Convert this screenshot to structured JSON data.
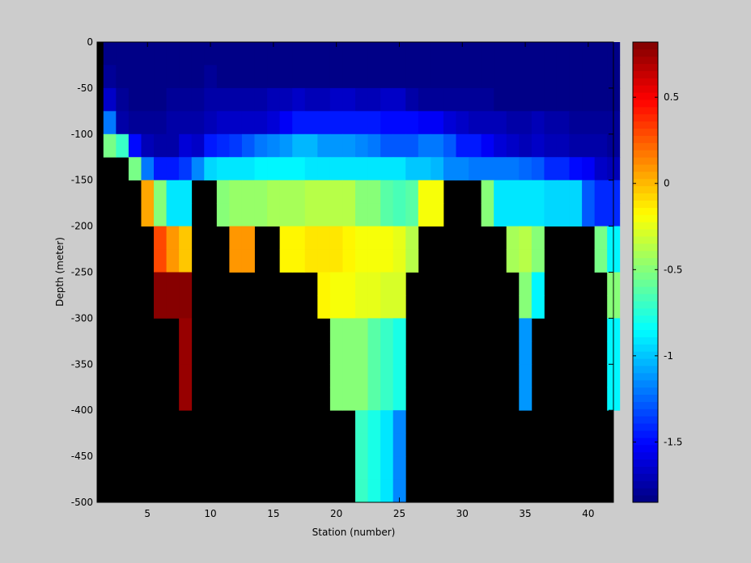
{
  "chart_data": {
    "type": "heatmap",
    "title": "",
    "xlabel": "Station (number)",
    "ylabel": "Depth (meter)",
    "xlim": [
      1,
      42
    ],
    "ylim": [
      -500,
      0
    ],
    "x_ticks": [
      5,
      10,
      15,
      20,
      25,
      30,
      35,
      40
    ],
    "y_ticks": [
      0,
      -50,
      -100,
      -150,
      -200,
      -250,
      -300,
      -350,
      -400,
      -450,
      -500
    ],
    "colorbar": {
      "colormap": "jet",
      "range": [
        -1.85,
        0.82
      ],
      "ticks": [
        0.5,
        0,
        -0.5,
        -1,
        -1.5
      ]
    },
    "missing_color": "#000000",
    "stations": [
      2,
      3,
      4,
      5,
      6,
      7,
      8,
      9,
      10,
      11,
      12,
      13,
      14,
      15,
      16,
      17,
      18,
      19,
      20,
      21,
      22,
      23,
      24,
      25,
      26,
      27,
      28,
      29,
      30,
      31,
      32,
      33,
      34,
      35,
      36,
      37,
      38,
      39,
      40,
      41,
      42
    ],
    "depth_levels": [
      0,
      -25,
      -50,
      -75,
      -100,
      -125,
      -150,
      -175,
      -200,
      -225,
      -250,
      -275,
      -300,
      -325,
      -350,
      -375,
      -400,
      -425,
      -450,
      -475,
      -500
    ],
    "values": [
      [
        -1.85,
        -1.85,
        -1.85,
        -1.85,
        -1.85,
        -1.85,
        -1.85,
        -1.85,
        -1.85,
        -1.85,
        -1.85,
        -1.85,
        -1.85,
        -1.85,
        -1.85,
        -1.85,
        -1.85,
        -1.85,
        -1.85,
        -1.85,
        -1.85,
        -1.85,
        -1.85,
        -1.85,
        -1.85,
        -1.85,
        -1.85,
        -1.85,
        -1.85,
        -1.85,
        -1.85,
        -1.85,
        -1.85,
        -1.85,
        -1.85,
        -1.85,
        -1.85,
        -1.85,
        -1.85,
        -1.85,
        -1.85
      ],
      [
        -1.8,
        -1.85,
        -1.85,
        -1.85,
        -1.85,
        -1.85,
        -1.85,
        -1.85,
        -1.8,
        -1.85,
        -1.85,
        -1.85,
        -1.85,
        -1.85,
        -1.85,
        -1.85,
        -1.85,
        -1.85,
        -1.85,
        -1.85,
        -1.85,
        -1.85,
        -1.85,
        -1.85,
        -1.85,
        -1.85,
        -1.85,
        -1.85,
        -1.85,
        -1.85,
        -1.85,
        -1.85,
        -1.85,
        -1.85,
        -1.85,
        -1.85,
        -1.85,
        -1.85,
        -1.85,
        -1.85,
        -1.85
      ],
      [
        -1.65,
        -1.8,
        -1.85,
        -1.85,
        -1.85,
        -1.8,
        -1.8,
        -1.8,
        -1.75,
        -1.75,
        -1.75,
        -1.75,
        -1.75,
        -1.7,
        -1.7,
        -1.65,
        -1.7,
        -1.7,
        -1.65,
        -1.65,
        -1.7,
        -1.7,
        -1.65,
        -1.65,
        -1.75,
        -1.8,
        -1.8,
        -1.8,
        -1.8,
        -1.8,
        -1.8,
        -1.85,
        -1.85,
        -1.85,
        -1.85,
        -1.85,
        -1.85,
        -1.85,
        -1.85,
        -1.85,
        -1.85
      ],
      [
        -1.2,
        -1.75,
        -1.8,
        -1.8,
        -1.8,
        -1.75,
        -1.75,
        -1.75,
        -1.7,
        -1.65,
        -1.65,
        -1.65,
        -1.65,
        -1.6,
        -1.55,
        -1.45,
        -1.45,
        -1.45,
        -1.45,
        -1.45,
        -1.45,
        -1.45,
        -1.5,
        -1.5,
        -1.5,
        -1.55,
        -1.55,
        -1.6,
        -1.65,
        -1.7,
        -1.7,
        -1.7,
        -1.75,
        -1.75,
        -1.7,
        -1.75,
        -1.75,
        -1.8,
        -1.8,
        -1.8,
        -1.8
      ],
      [
        -0.55,
        -0.7,
        -1.5,
        -1.7,
        -1.75,
        -1.75,
        -1.6,
        -1.65,
        -1.45,
        -1.4,
        -1.35,
        -1.3,
        -1.2,
        -1.15,
        -1.1,
        -1.05,
        -1.05,
        -1.1,
        -1.1,
        -1.1,
        -1.15,
        -1.2,
        -1.3,
        -1.3,
        -1.3,
        -1.2,
        -1.2,
        -1.3,
        -1.45,
        -1.45,
        -1.55,
        -1.6,
        -1.65,
        -1.7,
        -1.65,
        -1.7,
        -1.7,
        -1.75,
        -1.75,
        -1.75,
        -1.8
      ],
      [
        null,
        null,
        -0.55,
        -1.2,
        -1.45,
        -1.45,
        -1.35,
        -1.15,
        -0.95,
        -0.9,
        -0.9,
        -0.9,
        -0.85,
        -0.85,
        -0.85,
        -0.85,
        -0.9,
        -0.9,
        -0.9,
        -0.9,
        -0.9,
        -0.9,
        -0.9,
        -0.9,
        -1.0,
        -1.0,
        -1.05,
        -1.15,
        -1.15,
        -1.2,
        -1.2,
        -1.2,
        -1.2,
        -1.25,
        -1.3,
        -1.4,
        -1.4,
        -1.5,
        -1.55,
        -1.65,
        -1.7
      ],
      [
        null,
        null,
        null,
        0.05,
        -0.5,
        -0.9,
        -0.9,
        null,
        null,
        -0.5,
        -0.45,
        -0.45,
        -0.45,
        -0.4,
        -0.4,
        -0.4,
        -0.35,
        -0.35,
        -0.35,
        -0.35,
        -0.5,
        -0.5,
        -0.6,
        -0.65,
        -0.6,
        -0.2,
        -0.2,
        null,
        null,
        null,
        -0.5,
        -0.9,
        -0.9,
        -0.9,
        -0.9,
        -0.95,
        -0.95,
        -0.95,
        -1.3,
        -1.4,
        -1.4
      ],
      [
        null,
        null,
        null,
        0.05,
        -0.5,
        -0.9,
        -0.9,
        null,
        null,
        -0.5,
        -0.45,
        -0.45,
        -0.45,
        -0.4,
        -0.4,
        -0.4,
        -0.35,
        -0.35,
        -0.35,
        -0.35,
        -0.5,
        -0.5,
        -0.6,
        -0.65,
        -0.6,
        -0.2,
        -0.2,
        null,
        null,
        null,
        -0.5,
        -0.9,
        -0.9,
        -0.9,
        -0.9,
        -0.95,
        -0.95,
        -0.95,
        -1.3,
        -1.4,
        -1.4
      ],
      [
        null,
        null,
        null,
        null,
        0.3,
        0.1,
        -0.05,
        null,
        null,
        null,
        0.1,
        0.1,
        null,
        null,
        -0.15,
        -0.15,
        -0.1,
        -0.1,
        -0.1,
        -0.15,
        -0.2,
        -0.2,
        -0.2,
        -0.25,
        -0.35,
        null,
        null,
        null,
        null,
        null,
        null,
        null,
        -0.4,
        -0.35,
        -0.5,
        null,
        null,
        null,
        null,
        -0.55,
        -0.85
      ],
      [
        null,
        null,
        null,
        null,
        0.3,
        0.1,
        -0.05,
        null,
        null,
        null,
        0.1,
        0.1,
        null,
        null,
        -0.15,
        -0.15,
        -0.1,
        -0.1,
        -0.1,
        -0.15,
        -0.2,
        -0.2,
        -0.2,
        -0.25,
        -0.35,
        null,
        null,
        null,
        null,
        null,
        null,
        null,
        -0.4,
        -0.35,
        -0.5,
        null,
        null,
        null,
        null,
        -0.55,
        -0.85
      ],
      [
        null,
        null,
        null,
        null,
        0.8,
        0.8,
        0.8,
        null,
        null,
        null,
        null,
        null,
        null,
        null,
        null,
        null,
        null,
        -0.15,
        -0.2,
        -0.2,
        -0.25,
        -0.25,
        -0.3,
        -0.3,
        null,
        null,
        null,
        null,
        null,
        null,
        null,
        null,
        null,
        -0.5,
        -0.85,
        null,
        null,
        null,
        null,
        null,
        -0.5
      ],
      [
        null,
        null,
        null,
        null,
        0.8,
        0.8,
        0.8,
        null,
        null,
        null,
        null,
        null,
        null,
        null,
        null,
        null,
        null,
        -0.15,
        -0.2,
        -0.2,
        -0.25,
        -0.25,
        -0.3,
        -0.3,
        null,
        null,
        null,
        null,
        null,
        null,
        null,
        null,
        null,
        -0.5,
        -0.85,
        null,
        null,
        null,
        null,
        null,
        -0.5
      ],
      [
        null,
        null,
        null,
        null,
        null,
        null,
        0.75,
        null,
        null,
        null,
        null,
        null,
        null,
        null,
        null,
        null,
        null,
        null,
        -0.5,
        -0.5,
        -0.5,
        -0.6,
        -0.7,
        -0.8,
        null,
        null,
        null,
        null,
        null,
        null,
        null,
        null,
        null,
        -1.1,
        null,
        null,
        null,
        null,
        null,
        null,
        -0.85
      ],
      [
        null,
        null,
        null,
        null,
        null,
        null,
        0.75,
        null,
        null,
        null,
        null,
        null,
        null,
        null,
        null,
        null,
        null,
        null,
        -0.5,
        -0.5,
        -0.5,
        -0.6,
        -0.7,
        -0.8,
        null,
        null,
        null,
        null,
        null,
        null,
        null,
        null,
        null,
        -1.1,
        null,
        null,
        null,
        null,
        null,
        null,
        -0.85
      ],
      [
        null,
        null,
        null,
        null,
        null,
        null,
        0.75,
        null,
        null,
        null,
        null,
        null,
        null,
        null,
        null,
        null,
        null,
        null,
        -0.5,
        -0.5,
        -0.5,
        -0.6,
        -0.7,
        -0.8,
        null,
        null,
        null,
        null,
        null,
        null,
        null,
        null,
        null,
        -1.1,
        null,
        null,
        null,
        null,
        null,
        null,
        -0.85
      ],
      [
        null,
        null,
        null,
        null,
        null,
        null,
        0.75,
        null,
        null,
        null,
        null,
        null,
        null,
        null,
        null,
        null,
        null,
        null,
        -0.5,
        -0.5,
        -0.5,
        -0.6,
        -0.7,
        -0.8,
        null,
        null,
        null,
        null,
        null,
        null,
        null,
        null,
        null,
        -1.1,
        null,
        null,
        null,
        null,
        null,
        null,
        -0.85
      ],
      [
        null,
        null,
        null,
        null,
        null,
        null,
        null,
        null,
        null,
        null,
        null,
        null,
        null,
        null,
        null,
        null,
        null,
        null,
        null,
        null,
        -0.7,
        -0.8,
        -0.9,
        -1.15,
        null,
        null,
        null,
        null,
        null,
        null,
        null,
        null,
        null,
        null,
        null,
        null,
        null,
        null,
        null,
        null,
        null
      ],
      [
        null,
        null,
        null,
        null,
        null,
        null,
        null,
        null,
        null,
        null,
        null,
        null,
        null,
        null,
        null,
        null,
        null,
        null,
        null,
        null,
        -0.7,
        -0.8,
        -0.9,
        -1.15,
        null,
        null,
        null,
        null,
        null,
        null,
        null,
        null,
        null,
        null,
        null,
        null,
        null,
        null,
        null,
        null,
        null
      ],
      [
        null,
        null,
        null,
        null,
        null,
        null,
        null,
        null,
        null,
        null,
        null,
        null,
        null,
        null,
        null,
        null,
        null,
        null,
        null,
        null,
        -0.7,
        -0.8,
        -0.9,
        -1.15,
        null,
        null,
        null,
        null,
        null,
        null,
        null,
        null,
        null,
        null,
        null,
        null,
        null,
        null,
        null,
        null,
        null
      ],
      [
        null,
        null,
        null,
        null,
        null,
        null,
        null,
        null,
        null,
        null,
        null,
        null,
        null,
        null,
        null,
        null,
        null,
        null,
        null,
        null,
        -0.7,
        -0.8,
        -0.9,
        -1.15,
        null,
        null,
        null,
        null,
        null,
        null,
        null,
        null,
        null,
        null,
        null,
        null,
        null,
        null,
        null,
        null,
        null
      ]
    ]
  }
}
